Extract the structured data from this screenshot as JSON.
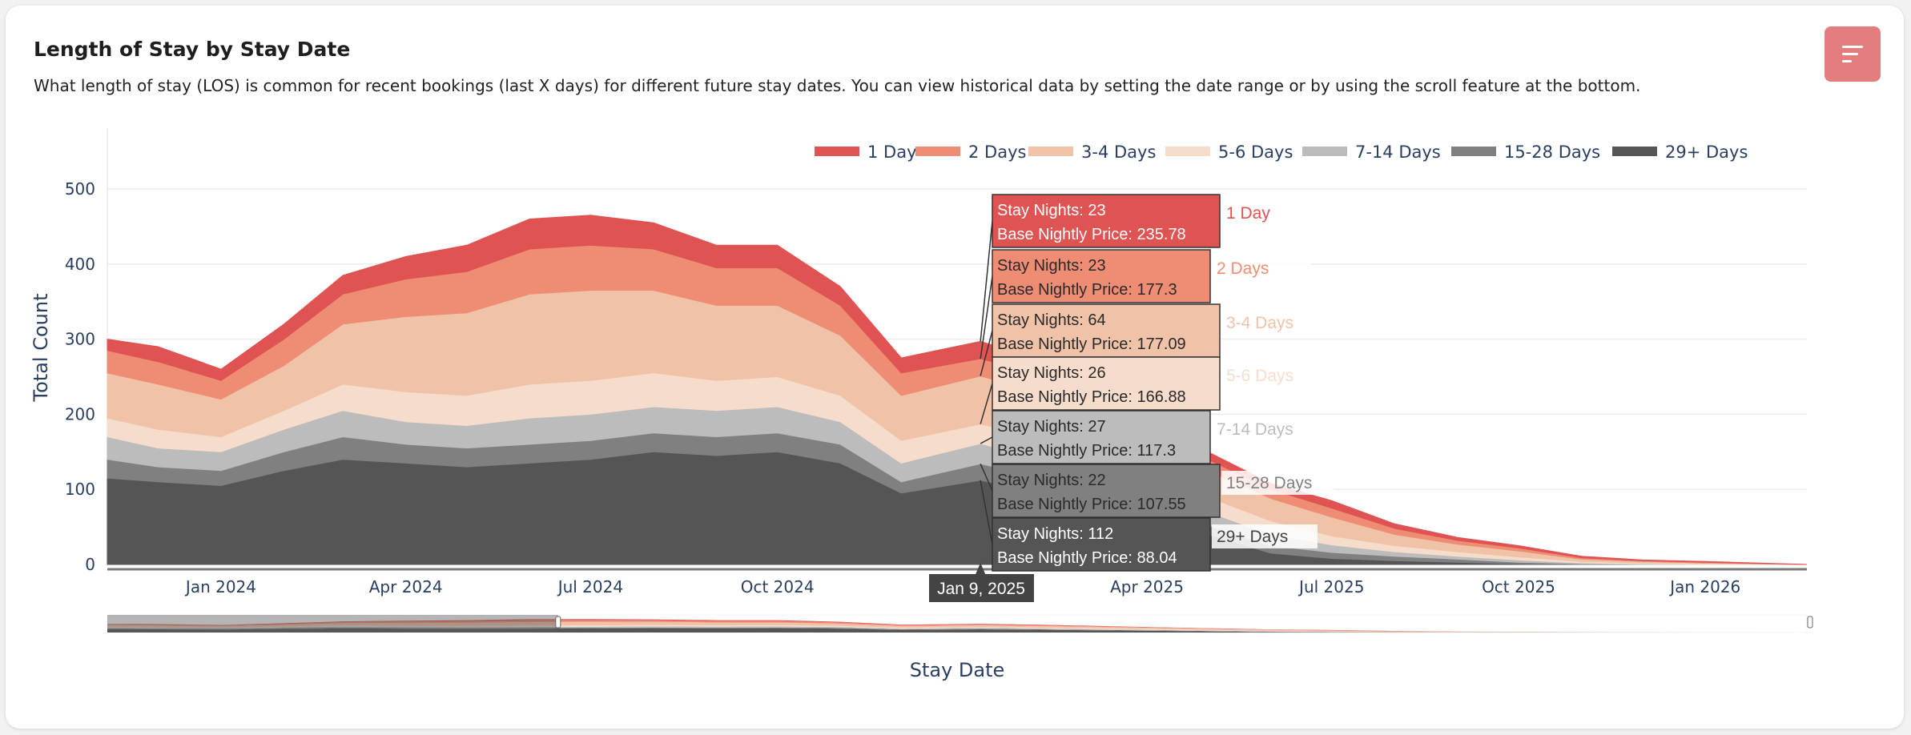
{
  "header": {
    "title": "Length of Stay by Stay Date",
    "subtitle": "What length of stay (LOS) is common for recent bookings (last X days) for different future stay dates. You can view historical data by setting the date range or by using the scroll feature at the bottom.",
    "menu_icon": "sort-lines-icon"
  },
  "chart_data": {
    "type": "area",
    "stacked": true,
    "title": "Length of Stay by Stay Date",
    "xlabel": "Stay Date",
    "ylabel": "Total Count",
    "ylim": [
      0,
      581
    ],
    "xlim": [
      "2023-11-06",
      "2026-02-20"
    ],
    "yticks": [
      0,
      100,
      200,
      300,
      400,
      500
    ],
    "xticks": [
      {
        "date": "2024-01-01",
        "label": "Jan 2024"
      },
      {
        "date": "2024-04-01",
        "label": "Apr 2024"
      },
      {
        "date": "2024-07-01",
        "label": "Jul 2024"
      },
      {
        "date": "2024-10-01",
        "label": "Oct 2024"
      },
      {
        "date": "2025-04-01",
        "label": "Apr 2025"
      },
      {
        "date": "2025-07-01",
        "label": "Jul 2025"
      },
      {
        "date": "2025-10-01",
        "label": "Oct 2025"
      },
      {
        "date": "2026-01-01",
        "label": "Jan 2026"
      }
    ],
    "grid": true,
    "legend_position": "top-right",
    "x": [
      "2023-11-06",
      "2023-12-01",
      "2024-01-01",
      "2024-02-01",
      "2024-03-01",
      "2024-04-01",
      "2024-05-01",
      "2024-06-01",
      "2024-07-01",
      "2024-08-01",
      "2024-09-01",
      "2024-10-01",
      "2024-11-01",
      "2024-12-01",
      "2025-01-09",
      "2025-02-01",
      "2025-03-01",
      "2025-04-01",
      "2025-05-01",
      "2025-06-01",
      "2025-07-01",
      "2025-08-01",
      "2025-09-01",
      "2025-10-01",
      "2025-11-01",
      "2025-12-01",
      "2026-01-01",
      "2026-02-20"
    ],
    "series": [
      {
        "name": "29+ Days",
        "color": "#555555",
        "values": [
          115,
          110,
          105,
          125,
          140,
          135,
          130,
          135,
          140,
          150,
          145,
          150,
          135,
          95,
          112,
          100,
          80,
          60,
          40,
          15,
          8,
          5,
          3,
          1,
          0,
          0,
          0,
          0
        ]
      },
      {
        "name": "15-28 Days",
        "color": "#808080",
        "values": [
          25,
          20,
          20,
          25,
          30,
          25,
          25,
          25,
          25,
          25,
          25,
          25,
          25,
          15,
          22,
          20,
          18,
          15,
          12,
          10,
          8,
          6,
          4,
          2,
          1,
          0,
          0,
          0
        ]
      },
      {
        "name": "7-14 Days",
        "color": "#bcbcbc",
        "values": [
          30,
          25,
          25,
          30,
          35,
          30,
          30,
          35,
          35,
          35,
          35,
          35,
          30,
          25,
          27,
          25,
          22,
          20,
          18,
          15,
          10,
          6,
          4,
          3,
          1,
          1,
          0,
          0
        ]
      },
      {
        "name": "5-6 Days",
        "color": "#f6dccb",
        "values": [
          25,
          25,
          20,
          25,
          35,
          40,
          40,
          45,
          45,
          45,
          40,
          40,
          35,
          30,
          26,
          28,
          25,
          22,
          20,
          18,
          12,
          8,
          6,
          4,
          2,
          1,
          1,
          0
        ]
      },
      {
        "name": "3-4 Days",
        "color": "#f0c2a8",
        "values": [
          60,
          60,
          50,
          60,
          80,
          100,
          110,
          120,
          120,
          110,
          100,
          95,
          80,
          60,
          64,
          60,
          55,
          45,
          35,
          30,
          25,
          15,
          10,
          8,
          3,
          2,
          1,
          0
        ]
      },
      {
        "name": "2 Days",
        "color": "#ee8c74",
        "values": [
          30,
          30,
          25,
          35,
          40,
          50,
          55,
          60,
          60,
          55,
          50,
          50,
          40,
          30,
          23,
          25,
          22,
          18,
          15,
          12,
          12,
          8,
          5,
          4,
          2,
          1,
          1,
          0
        ]
      },
      {
        "name": "1 Day",
        "color": "#e05353",
        "values": [
          15,
          20,
          15,
          20,
          25,
          30,
          35,
          40,
          40,
          35,
          30,
          30,
          25,
          20,
          23,
          20,
          15,
          12,
          10,
          8,
          10,
          6,
          4,
          3,
          2,
          1,
          1,
          0
        ]
      }
    ],
    "legend": [
      "1 Day",
      "2 Days",
      "3-4 Days",
      "5-6 Days",
      "7-14 Days",
      "15-28 Days",
      "29+ Days"
    ],
    "hover": {
      "date": "2025-01-09",
      "date_label": "Jan 9, 2025",
      "nights_label": "Stay Nights:",
      "price_label": "Base Nightly Price:",
      "items": [
        {
          "series": "1 Day",
          "stay_nights": 23,
          "price": "235.78",
          "color": "#e05353",
          "text": "#ffffff"
        },
        {
          "series": "2 Days",
          "stay_nights": 23,
          "price": "177.3",
          "color": "#ee8c74",
          "text": "#2a2a2a"
        },
        {
          "series": "3-4 Days",
          "stay_nights": 64,
          "price": "177.09",
          "color": "#f0c2a8",
          "text": "#2a2a2a"
        },
        {
          "series": "5-6 Days",
          "stay_nights": 26,
          "price": "166.88",
          "color": "#f6dccb",
          "text": "#2a2a2a"
        },
        {
          "series": "7-14 Days",
          "stay_nights": 27,
          "price": "117.3",
          "color": "#bcbcbc",
          "text": "#2a2a2a"
        },
        {
          "series": "15-28 Days",
          "stay_nights": 22,
          "price": "107.55",
          "color": "#808080",
          "text": "#2a2a2a"
        },
        {
          "series": "29+ Days",
          "stay_nights": 112,
          "price": "88.04",
          "color": "#555555",
          "text": "#ffffff"
        }
      ]
    },
    "range_slider": {
      "selected_start": "2024-06-15",
      "selected_end": "2026-02-20"
    }
  }
}
